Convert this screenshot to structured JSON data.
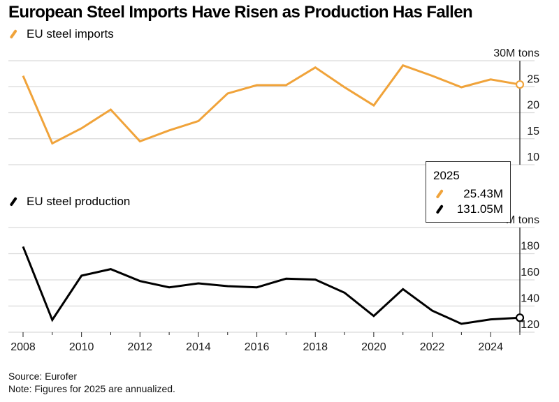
{
  "title": "European Steel Imports Have Risen as Production Has Fallen",
  "colors": {
    "imports": "#F0A33A",
    "production": "#000000",
    "grid": "#d9d9d9",
    "axis": "#222222"
  },
  "legend": {
    "imports": {
      "icon": "orange-slash-line-icon",
      "label": "EU steel imports"
    },
    "production": {
      "icon": "black-slash-line-icon",
      "label": "EU steel production"
    }
  },
  "tooltip": {
    "year": "2025",
    "imports_value": "25.43M",
    "production_value": "131.05M"
  },
  "footer": {
    "source": "Source: Eurofer",
    "note": "Note: Figures for 2025 are annualized."
  },
  "chart_data": [
    {
      "type": "line",
      "title": "EU steel imports",
      "unit_label": "30M tons",
      "x": [
        2008,
        2009,
        2010,
        2011,
        2012,
        2013,
        2014,
        2015,
        2016,
        2017,
        2018,
        2019,
        2020,
        2021,
        2022,
        2023,
        2024,
        2025
      ],
      "series": [
        {
          "name": "EU steel imports",
          "values": [
            27.1,
            14.1,
            17.0,
            20.6,
            14.5,
            16.6,
            18.4,
            23.7,
            25.3,
            25.3,
            28.7,
            24.9,
            21.4,
            29.1,
            27.1,
            24.9,
            26.4,
            25.43
          ]
        }
      ],
      "yticks": [
        10,
        15,
        20,
        25,
        30
      ],
      "ytick_labels": [
        "10",
        "15",
        "20",
        "25",
        "30M tons"
      ],
      "ylim": [
        10,
        30
      ],
      "grid": true,
      "axis_side": "right",
      "highlight_last_point": true
    },
    {
      "type": "line",
      "title": "EU steel production",
      "unit_label": "M tons",
      "x": [
        2008,
        2009,
        2010,
        2011,
        2012,
        2013,
        2014,
        2015,
        2016,
        2017,
        2018,
        2019,
        2020,
        2021,
        2022,
        2023,
        2024,
        2025
      ],
      "series": [
        {
          "name": "EU steel production",
          "values": [
            185.4,
            129.4,
            163.2,
            168.2,
            159.1,
            154.3,
            157.3,
            155.2,
            154.3,
            160.9,
            160.2,
            150.2,
            132.4,
            152.9,
            136.5,
            126.4,
            129.8,
            131.05
          ]
        }
      ],
      "yticks": [
        120,
        140,
        160,
        180,
        200
      ],
      "ytick_labels": [
        "120",
        "140",
        "160",
        "180",
        "M tons"
      ],
      "ylim": [
        120,
        200
      ],
      "grid": true,
      "axis_side": "right",
      "xticks_major": [
        2008,
        2010,
        2012,
        2014,
        2016,
        2018,
        2020,
        2022,
        2024
      ],
      "xtick_labels": [
        "2008",
        "2010",
        "2012",
        "2014",
        "2016",
        "2018",
        "2020",
        "2022",
        "2024"
      ],
      "highlight_last_point": true
    }
  ]
}
